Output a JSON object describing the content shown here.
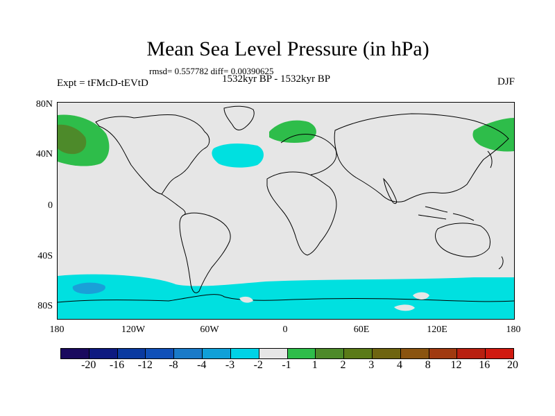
{
  "title": "Mean Sea Level Pressure (in hPa)",
  "stats": "rmsd= 0.557782 diff= 0.00390625",
  "period": "1532kyr BP - 1532kyr BP",
  "experiment": "Expt = tFMcD-tEVtD",
  "season": "DJF",
  "map": {
    "lat_labels": [
      "80N",
      "40N",
      "0",
      "40S",
      "80S"
    ],
    "lon_labels": [
      "180",
      "120W",
      "60W",
      "0",
      "60E",
      "120E",
      "180"
    ],
    "background_color": "#e6e6e6",
    "regions": [
      {
        "name": "north-pacific-high-west",
        "level": "2",
        "color": "#2ebd4a"
      },
      {
        "name": "north-pacific-core",
        "level": "3",
        "color": "#4d8a2a"
      },
      {
        "name": "north-atlantic-low",
        "level": "-2",
        "color": "#00e0e0"
      },
      {
        "name": "europe-high",
        "level": "2",
        "color": "#2ebd4a"
      },
      {
        "name": "asia-pacific-high",
        "level": "2",
        "color": "#2ebd4a"
      },
      {
        "name": "southern-ocean-low",
        "level": "-2",
        "color": "#00e0e0"
      },
      {
        "name": "southern-pacific-core",
        "level": "-3",
        "color": "#1aa0d8"
      }
    ]
  },
  "legend": {
    "colors": [
      "#1a0a5e",
      "#0d1a80",
      "#0a3aa0",
      "#1050b8",
      "#1a7ac8",
      "#10a0d8",
      "#00d2e6",
      "#e6e6e6",
      "#2ebd4a",
      "#4d8a2a",
      "#5a7a18",
      "#6e6410",
      "#8a5410",
      "#a03a10",
      "#b82010",
      "#d01a10"
    ],
    "labels": [
      "-20",
      "-16",
      "-12",
      "-8",
      "-4",
      "-3",
      "-2",
      "-1",
      "1",
      "2",
      "3",
      "4",
      "8",
      "12",
      "16",
      "20"
    ]
  }
}
